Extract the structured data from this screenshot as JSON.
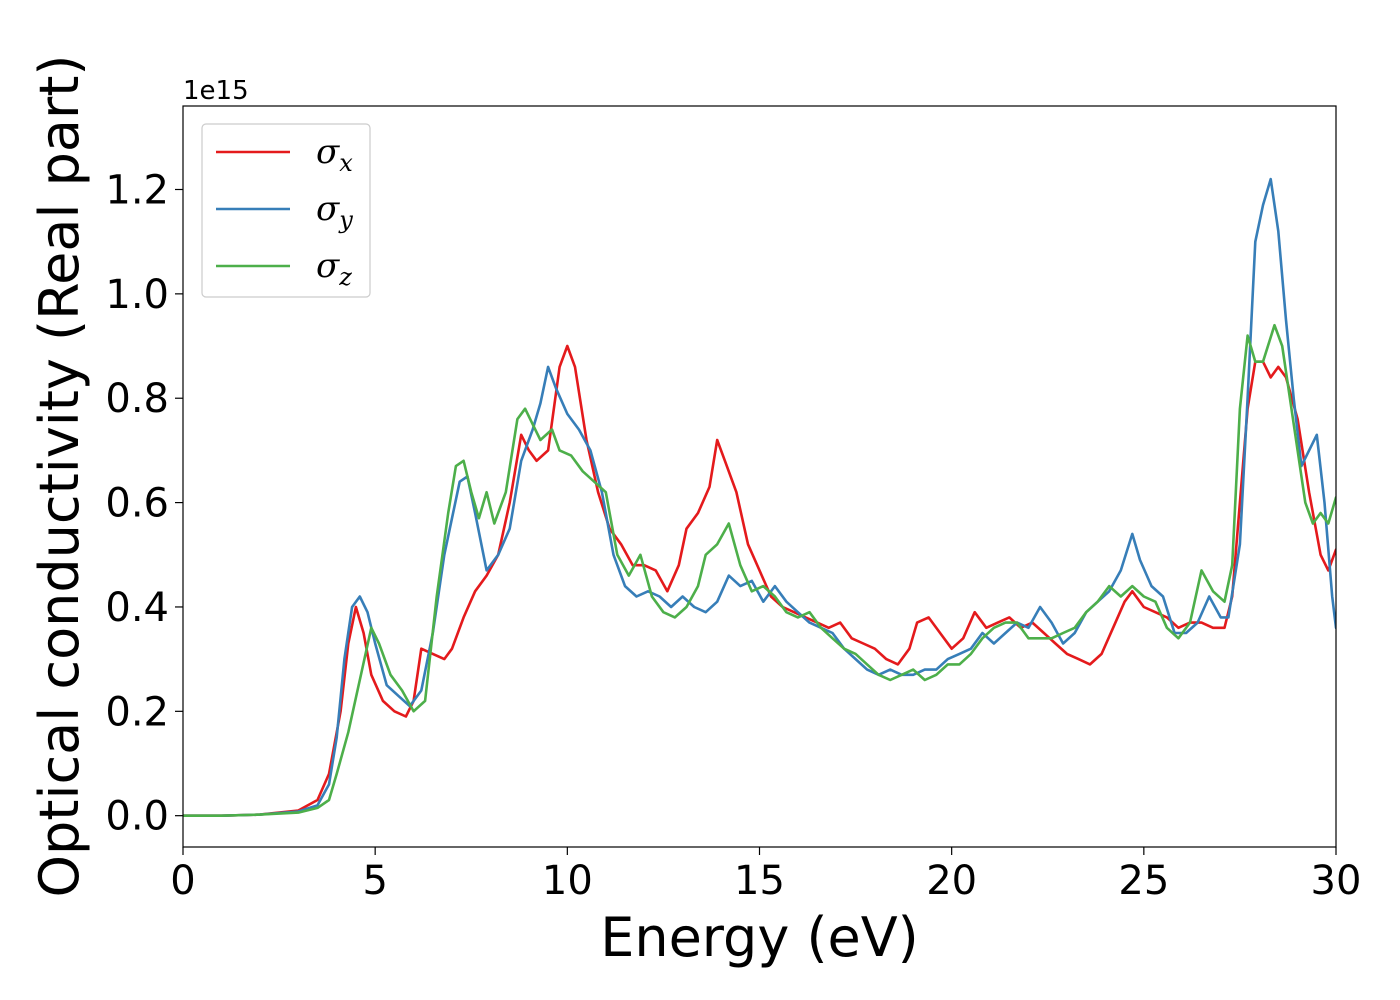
{
  "chart_data": {
    "type": "line",
    "xlabel": "Energy (eV)",
    "ylabel": "Optical conductivity (Real part)",
    "y_offset_label": "1e15",
    "xlim": [
      0,
      30
    ],
    "ylim": [
      -0.06,
      1.36
    ],
    "x_ticks": [
      0,
      5,
      10,
      15,
      20,
      25,
      30
    ],
    "x_tick_labels": [
      "0",
      "5",
      "10",
      "15",
      "20",
      "25",
      "30"
    ],
    "y_ticks": [
      0.0,
      0.2,
      0.4,
      0.6,
      0.8,
      1.0,
      1.2
    ],
    "y_tick_labels": [
      "0.0",
      "0.2",
      "0.4",
      "0.6",
      "0.8",
      "1.0",
      "1.2"
    ],
    "grid": false,
    "legend_position": "top-left",
    "series": [
      {
        "name": "σ",
        "subscript": "x",
        "color": "#e41a1c",
        "points": [
          [
            0,
            0
          ],
          [
            1,
            0
          ],
          [
            2,
            0.002
          ],
          [
            3,
            0.01
          ],
          [
            3.5,
            0.03
          ],
          [
            3.8,
            0.08
          ],
          [
            4.1,
            0.2
          ],
          [
            4.3,
            0.33
          ],
          [
            4.5,
            0.4
          ],
          [
            4.7,
            0.35
          ],
          [
            4.9,
            0.27
          ],
          [
            5.2,
            0.22
          ],
          [
            5.5,
            0.2
          ],
          [
            5.8,
            0.19
          ],
          [
            6.0,
            0.22
          ],
          [
            6.2,
            0.32
          ],
          [
            6.5,
            0.31
          ],
          [
            6.8,
            0.3
          ],
          [
            7.0,
            0.32
          ],
          [
            7.3,
            0.38
          ],
          [
            7.6,
            0.43
          ],
          [
            7.9,
            0.46
          ],
          [
            8.2,
            0.5
          ],
          [
            8.5,
            0.6
          ],
          [
            8.8,
            0.73
          ],
          [
            9.0,
            0.7
          ],
          [
            9.2,
            0.68
          ],
          [
            9.5,
            0.7
          ],
          [
            9.8,
            0.86
          ],
          [
            10.0,
            0.9
          ],
          [
            10.2,
            0.86
          ],
          [
            10.5,
            0.72
          ],
          [
            10.8,
            0.62
          ],
          [
            11.1,
            0.55
          ],
          [
            11.4,
            0.52
          ],
          [
            11.7,
            0.48
          ],
          [
            12.0,
            0.48
          ],
          [
            12.3,
            0.47
          ],
          [
            12.6,
            0.43
          ],
          [
            12.9,
            0.48
          ],
          [
            13.1,
            0.55
          ],
          [
            13.4,
            0.58
          ],
          [
            13.7,
            0.63
          ],
          [
            13.9,
            0.72
          ],
          [
            14.1,
            0.68
          ],
          [
            14.4,
            0.62
          ],
          [
            14.7,
            0.52
          ],
          [
            15.0,
            0.47
          ],
          [
            15.3,
            0.42
          ],
          [
            15.6,
            0.4
          ],
          [
            15.9,
            0.39
          ],
          [
            16.2,
            0.38
          ],
          [
            16.5,
            0.37
          ],
          [
            16.8,
            0.36
          ],
          [
            17.1,
            0.37
          ],
          [
            17.4,
            0.34
          ],
          [
            17.7,
            0.33
          ],
          [
            18.0,
            0.32
          ],
          [
            18.3,
            0.3
          ],
          [
            18.6,
            0.29
          ],
          [
            18.9,
            0.32
          ],
          [
            19.1,
            0.37
          ],
          [
            19.4,
            0.38
          ],
          [
            19.7,
            0.35
          ],
          [
            20.0,
            0.32
          ],
          [
            20.3,
            0.34
          ],
          [
            20.6,
            0.39
          ],
          [
            20.9,
            0.36
          ],
          [
            21.2,
            0.37
          ],
          [
            21.5,
            0.38
          ],
          [
            21.8,
            0.36
          ],
          [
            22.1,
            0.37
          ],
          [
            22.4,
            0.35
          ],
          [
            22.7,
            0.33
          ],
          [
            23.0,
            0.31
          ],
          [
            23.3,
            0.3
          ],
          [
            23.6,
            0.29
          ],
          [
            23.9,
            0.31
          ],
          [
            24.2,
            0.36
          ],
          [
            24.5,
            0.41
          ],
          [
            24.7,
            0.43
          ],
          [
            25.0,
            0.4
          ],
          [
            25.3,
            0.39
          ],
          [
            25.6,
            0.38
          ],
          [
            25.9,
            0.36
          ],
          [
            26.2,
            0.37
          ],
          [
            26.5,
            0.37
          ],
          [
            26.8,
            0.36
          ],
          [
            27.1,
            0.36
          ],
          [
            27.3,
            0.42
          ],
          [
            27.5,
            0.6
          ],
          [
            27.7,
            0.78
          ],
          [
            27.9,
            0.87
          ],
          [
            28.1,
            0.87
          ],
          [
            28.3,
            0.84
          ],
          [
            28.5,
            0.86
          ],
          [
            28.7,
            0.84
          ],
          [
            29.0,
            0.76
          ],
          [
            29.3,
            0.62
          ],
          [
            29.6,
            0.5
          ],
          [
            29.8,
            0.47
          ],
          [
            30.0,
            0.51
          ]
        ]
      },
      {
        "name": "σ",
        "subscript": "y",
        "color": "#377eb8",
        "points": [
          [
            0,
            0
          ],
          [
            1,
            0
          ],
          [
            2,
            0.002
          ],
          [
            3,
            0.008
          ],
          [
            3.5,
            0.02
          ],
          [
            3.8,
            0.06
          ],
          [
            4.0,
            0.15
          ],
          [
            4.2,
            0.3
          ],
          [
            4.4,
            0.4
          ],
          [
            4.6,
            0.42
          ],
          [
            4.8,
            0.39
          ],
          [
            5.0,
            0.33
          ],
          [
            5.3,
            0.25
          ],
          [
            5.6,
            0.23
          ],
          [
            5.9,
            0.21
          ],
          [
            6.2,
            0.24
          ],
          [
            6.5,
            0.35
          ],
          [
            6.8,
            0.5
          ],
          [
            7.0,
            0.57
          ],
          [
            7.2,
            0.64
          ],
          [
            7.4,
            0.65
          ],
          [
            7.6,
            0.58
          ],
          [
            7.9,
            0.47
          ],
          [
            8.2,
            0.5
          ],
          [
            8.5,
            0.55
          ],
          [
            8.8,
            0.68
          ],
          [
            9.1,
            0.74
          ],
          [
            9.3,
            0.79
          ],
          [
            9.5,
            0.86
          ],
          [
            9.7,
            0.82
          ],
          [
            10.0,
            0.77
          ],
          [
            10.3,
            0.74
          ],
          [
            10.6,
            0.7
          ],
          [
            10.9,
            0.62
          ],
          [
            11.2,
            0.5
          ],
          [
            11.5,
            0.44
          ],
          [
            11.8,
            0.42
          ],
          [
            12.1,
            0.43
          ],
          [
            12.4,
            0.42
          ],
          [
            12.7,
            0.4
          ],
          [
            13.0,
            0.42
          ],
          [
            13.3,
            0.4
          ],
          [
            13.6,
            0.39
          ],
          [
            13.9,
            0.41
          ],
          [
            14.2,
            0.46
          ],
          [
            14.5,
            0.44
          ],
          [
            14.8,
            0.45
          ],
          [
            15.1,
            0.41
          ],
          [
            15.4,
            0.44
          ],
          [
            15.7,
            0.41
          ],
          [
            16.0,
            0.39
          ],
          [
            16.3,
            0.37
          ],
          [
            16.6,
            0.36
          ],
          [
            16.9,
            0.35
          ],
          [
            17.2,
            0.32
          ],
          [
            17.5,
            0.3
          ],
          [
            17.8,
            0.28
          ],
          [
            18.1,
            0.27
          ],
          [
            18.4,
            0.28
          ],
          [
            18.7,
            0.27
          ],
          [
            19.0,
            0.27
          ],
          [
            19.3,
            0.28
          ],
          [
            19.6,
            0.28
          ],
          [
            19.9,
            0.3
          ],
          [
            20.2,
            0.31
          ],
          [
            20.5,
            0.32
          ],
          [
            20.8,
            0.35
          ],
          [
            21.1,
            0.33
          ],
          [
            21.4,
            0.35
          ],
          [
            21.7,
            0.37
          ],
          [
            22.0,
            0.36
          ],
          [
            22.3,
            0.4
          ],
          [
            22.6,
            0.37
          ],
          [
            22.9,
            0.33
          ],
          [
            23.2,
            0.35
          ],
          [
            23.5,
            0.39
          ],
          [
            23.8,
            0.41
          ],
          [
            24.1,
            0.43
          ],
          [
            24.4,
            0.47
          ],
          [
            24.7,
            0.54
          ],
          [
            24.9,
            0.49
          ],
          [
            25.2,
            0.44
          ],
          [
            25.5,
            0.42
          ],
          [
            25.8,
            0.35
          ],
          [
            26.1,
            0.35
          ],
          [
            26.4,
            0.37
          ],
          [
            26.7,
            0.42
          ],
          [
            27.0,
            0.38
          ],
          [
            27.2,
            0.38
          ],
          [
            27.5,
            0.52
          ],
          [
            27.7,
            0.8
          ],
          [
            27.9,
            1.1
          ],
          [
            28.1,
            1.17
          ],
          [
            28.3,
            1.22
          ],
          [
            28.5,
            1.12
          ],
          [
            28.7,
            0.95
          ],
          [
            28.9,
            0.8
          ],
          [
            29.1,
            0.67
          ],
          [
            29.3,
            0.7
          ],
          [
            29.5,
            0.73
          ],
          [
            29.7,
            0.6
          ],
          [
            29.9,
            0.42
          ],
          [
            30.0,
            0.36
          ]
        ]
      },
      {
        "name": "σ",
        "subscript": "z",
        "color": "#4daf4a",
        "points": [
          [
            0,
            0
          ],
          [
            1,
            0
          ],
          [
            2,
            0.002
          ],
          [
            3,
            0.006
          ],
          [
            3.5,
            0.015
          ],
          [
            3.8,
            0.03
          ],
          [
            4.0,
            0.08
          ],
          [
            4.3,
            0.16
          ],
          [
            4.6,
            0.26
          ],
          [
            4.9,
            0.36
          ],
          [
            5.1,
            0.33
          ],
          [
            5.4,
            0.27
          ],
          [
            5.7,
            0.24
          ],
          [
            6.0,
            0.2
          ],
          [
            6.3,
            0.22
          ],
          [
            6.6,
            0.42
          ],
          [
            6.9,
            0.58
          ],
          [
            7.1,
            0.67
          ],
          [
            7.3,
            0.68
          ],
          [
            7.5,
            0.62
          ],
          [
            7.7,
            0.57
          ],
          [
            7.9,
            0.62
          ],
          [
            8.1,
            0.56
          ],
          [
            8.4,
            0.62
          ],
          [
            8.7,
            0.76
          ],
          [
            8.9,
            0.78
          ],
          [
            9.1,
            0.75
          ],
          [
            9.3,
            0.72
          ],
          [
            9.6,
            0.74
          ],
          [
            9.8,
            0.7
          ],
          [
            10.1,
            0.69
          ],
          [
            10.4,
            0.66
          ],
          [
            10.7,
            0.64
          ],
          [
            11.0,
            0.62
          ],
          [
            11.3,
            0.5
          ],
          [
            11.6,
            0.46
          ],
          [
            11.9,
            0.5
          ],
          [
            12.2,
            0.42
          ],
          [
            12.5,
            0.39
          ],
          [
            12.8,
            0.38
          ],
          [
            13.1,
            0.4
          ],
          [
            13.4,
            0.44
          ],
          [
            13.6,
            0.5
          ],
          [
            13.9,
            0.52
          ],
          [
            14.2,
            0.56
          ],
          [
            14.5,
            0.48
          ],
          [
            14.8,
            0.43
          ],
          [
            15.1,
            0.44
          ],
          [
            15.4,
            0.42
          ],
          [
            15.7,
            0.39
          ],
          [
            16.0,
            0.38
          ],
          [
            16.3,
            0.39
          ],
          [
            16.6,
            0.36
          ],
          [
            16.9,
            0.34
          ],
          [
            17.2,
            0.32
          ],
          [
            17.5,
            0.31
          ],
          [
            17.8,
            0.29
          ],
          [
            18.1,
            0.27
          ],
          [
            18.4,
            0.26
          ],
          [
            18.7,
            0.27
          ],
          [
            19.0,
            0.28
          ],
          [
            19.3,
            0.26
          ],
          [
            19.6,
            0.27
          ],
          [
            19.9,
            0.29
          ],
          [
            20.2,
            0.29
          ],
          [
            20.5,
            0.31
          ],
          [
            20.8,
            0.34
          ],
          [
            21.1,
            0.36
          ],
          [
            21.4,
            0.37
          ],
          [
            21.7,
            0.37
          ],
          [
            22.0,
            0.34
          ],
          [
            22.3,
            0.34
          ],
          [
            22.6,
            0.34
          ],
          [
            22.9,
            0.35
          ],
          [
            23.2,
            0.36
          ],
          [
            23.5,
            0.39
          ],
          [
            23.8,
            0.41
          ],
          [
            24.1,
            0.44
          ],
          [
            24.4,
            0.42
          ],
          [
            24.7,
            0.44
          ],
          [
            25.0,
            0.42
          ],
          [
            25.3,
            0.41
          ],
          [
            25.6,
            0.36
          ],
          [
            25.9,
            0.34
          ],
          [
            26.2,
            0.37
          ],
          [
            26.5,
            0.47
          ],
          [
            26.8,
            0.43
          ],
          [
            27.1,
            0.41
          ],
          [
            27.3,
            0.48
          ],
          [
            27.5,
            0.78
          ],
          [
            27.7,
            0.92
          ],
          [
            27.9,
            0.87
          ],
          [
            28.1,
            0.87
          ],
          [
            28.4,
            0.94
          ],
          [
            28.6,
            0.9
          ],
          [
            28.8,
            0.8
          ],
          [
            29.0,
            0.7
          ],
          [
            29.2,
            0.6
          ],
          [
            29.4,
            0.56
          ],
          [
            29.6,
            0.58
          ],
          [
            29.8,
            0.56
          ],
          [
            30.0,
            0.61
          ]
        ]
      }
    ]
  }
}
